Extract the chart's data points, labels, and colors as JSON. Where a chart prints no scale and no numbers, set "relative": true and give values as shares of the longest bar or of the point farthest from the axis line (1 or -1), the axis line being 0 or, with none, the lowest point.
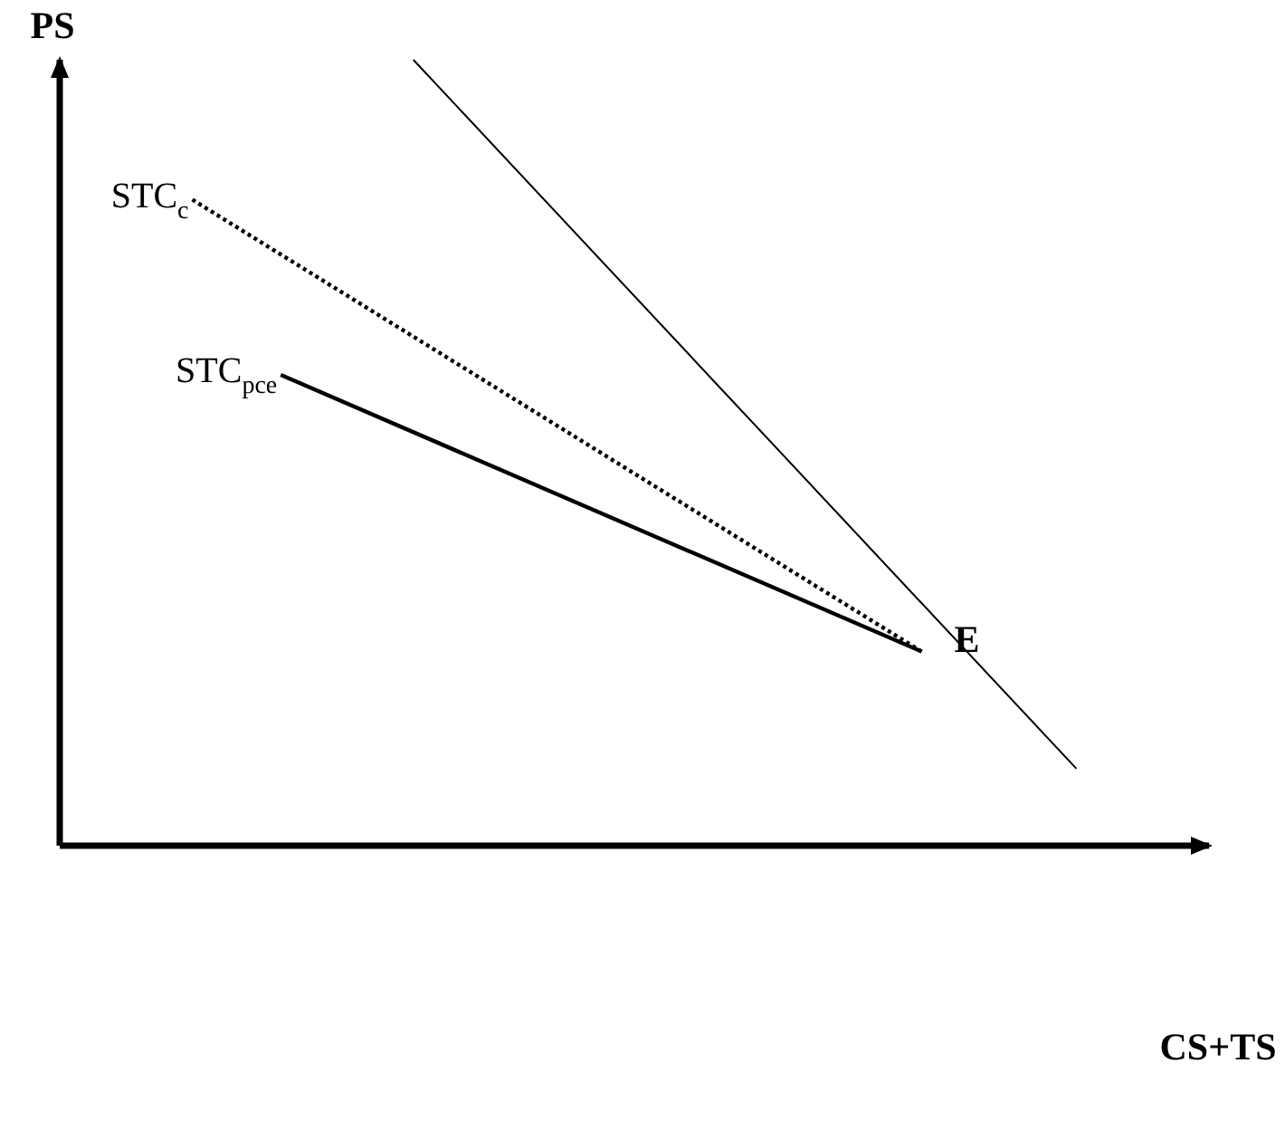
{
  "chart_data": {
    "type": "line",
    "relative": true,
    "xlabel": "CS+TS",
    "ylabel": "PS",
    "grid": false,
    "legend": false,
    "marker": "none",
    "categories": [
      null,
      null,
      null,
      null,
      null,
      null,
      null,
      null,
      null,
      null,
      null,
      null,
      null,
      null,
      null,
      null,
      null,
      null,
      null,
      null,
      null,
      null,
      null,
      null,
      null,
      null,
      null,
      null,
      null,
      null,
      null,
      null,
      null,
      null,
      null,
      null,
      null,
      null,
      null,
      null,
      null,
      null,
      null,
      null,
      null,
      null,
      null,
      null,
      null,
      null,
      null,
      null,
      null
    ],
    "series": [
      {
        "color": "#000000",
        "values": [
          null,
          null,
          null,
          null,
          null,
          null,
          null,
          null,
          null,
          null,
          null,
          null,
          null,
          null,
          null,
          null,
          1,
          null,
          null,
          null,
          null,
          null,
          null,
          null,
          null,
          null,
          null,
          null,
          null,
          null,
          null,
          null,
          null,
          null,
          null,
          null,
          null,
          null,
          null,
          null,
          null,
          null,
          null,
          null,
          null,
          null,
          0.098,
          null,
          null,
          null,
          null,
          null,
          null
        ]
      },
      {
        "name": "STC$_{c}$",
        "color": "#000000",
        "line_style": "dotted",
        "values": [
          null,
          null,
          null,
          null,
          null,
          null,
          0.822,
          null,
          null,
          null,
          null,
          null,
          null,
          null,
          null,
          null,
          null,
          null,
          null,
          null,
          null,
          null,
          null,
          null,
          null,
          null,
          null,
          null,
          null,
          null,
          null,
          null,
          null,
          null,
          null,
          null,
          null,
          null,
          null,
          0.247,
          null,
          null,
          null,
          null,
          null,
          null,
          null,
          null,
          null,
          null,
          null,
          null,
          null
        ]
      },
      {
        "name": "STC$_{pce}$",
        "color": "#000000",
        "values": [
          null,
          null,
          null,
          null,
          null,
          null,
          null,
          null,
          null,
          null,
          0.599,
          null,
          null,
          null,
          null,
          null,
          null,
          null,
          null,
          null,
          null,
          null,
          null,
          null,
          null,
          null,
          null,
          null,
          null,
          null,
          null,
          null,
          null,
          null,
          null,
          null,
          null,
          null,
          null,
          0.247,
          null,
          null,
          null,
          null,
          null,
          null,
          null,
          null,
          null,
          null,
          null,
          null,
          null
        ]
      }
    ],
    "annotations": [
      {
        "text": "E",
        "y": 0.247
      }
    ]
  }
}
